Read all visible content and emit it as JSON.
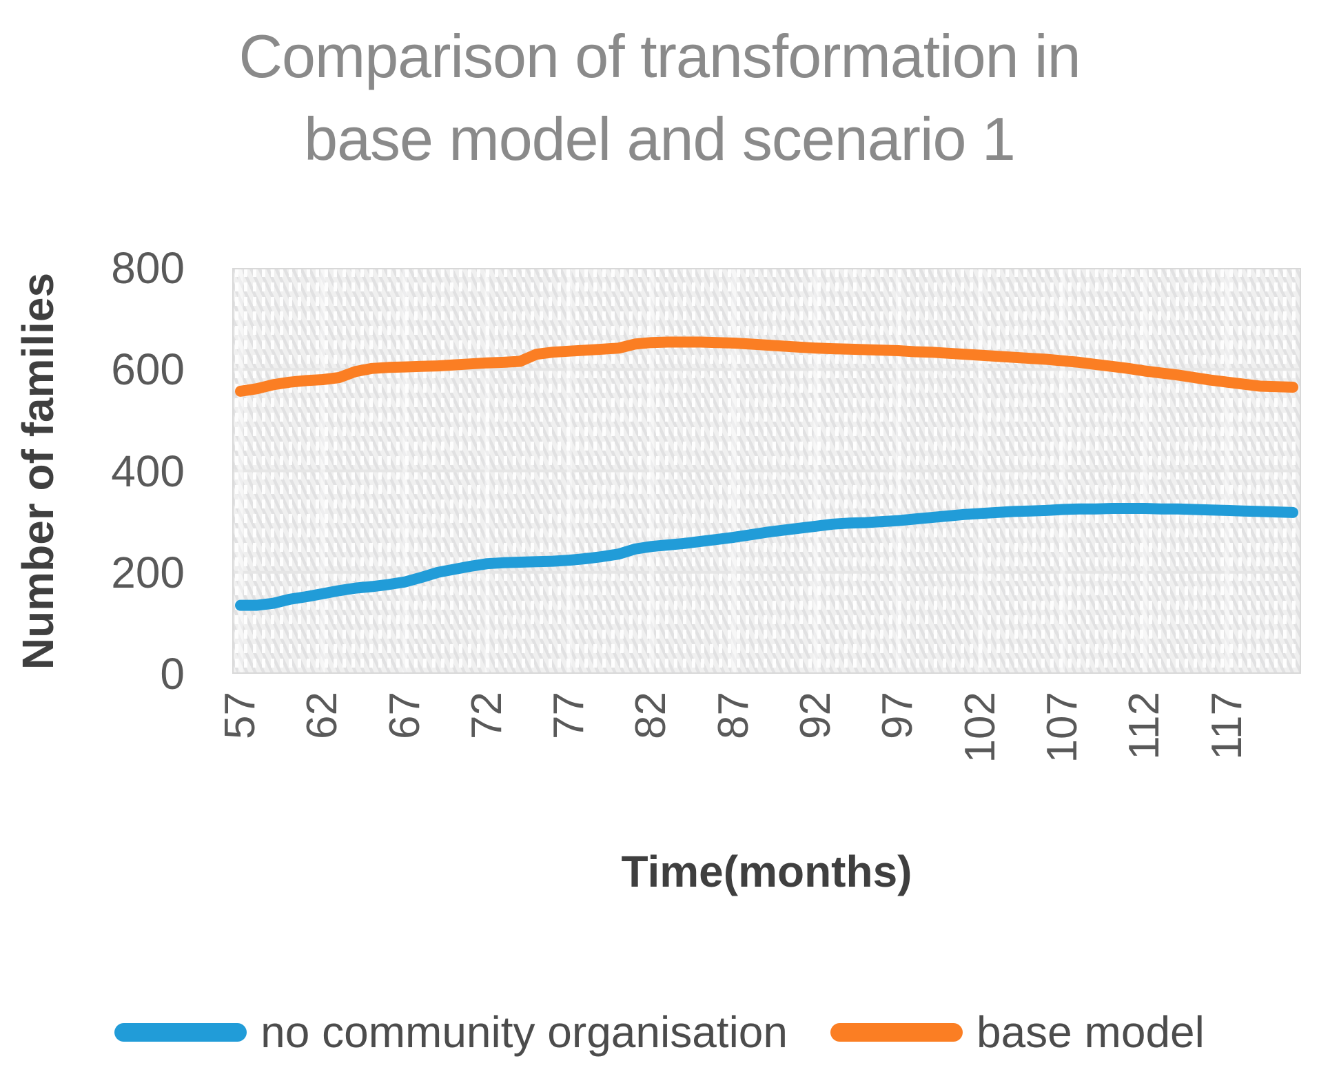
{
  "title": "Comparison of transformation in base model and scenario 1",
  "axes": {
    "y_label": "Number of families",
    "x_label": "Time(months)",
    "y_ticks": [
      800,
      600,
      400,
      200,
      0
    ],
    "x_ticks": [
      57,
      62,
      67,
      72,
      77,
      82,
      87,
      92,
      97,
      102,
      107,
      112,
      117
    ]
  },
  "legend": [
    {
      "label": "no community organisation",
      "color": "#219CD8"
    },
    {
      "label": "base model",
      "color": "#FB7E23"
    }
  ],
  "colors": {
    "title_text": "#8a8a8a",
    "axis_text": "#595959",
    "axis_title_text": "#3f3f3f",
    "plot_fill": "#f0f0f0",
    "plot_hatch": "#e1e1e2",
    "gridline": "#e6e6e6",
    "plot_border": "#d8d8d8"
  },
  "chart_data": {
    "type": "line",
    "title": "Comparison of transformation in base model and scenario 1",
    "xlabel": "Time(months)",
    "ylabel": "Number of families",
    "ylim": [
      0,
      800
    ],
    "grid_y_values": [
      200,
      400,
      600
    ],
    "legend_position": "bottom",
    "x": [
      57,
      58,
      59,
      60,
      61,
      62,
      63,
      64,
      65,
      66,
      67,
      68,
      69,
      70,
      71,
      72,
      73,
      74,
      75,
      76,
      77,
      78,
      79,
      80,
      81,
      82,
      83,
      84,
      85,
      86,
      87,
      88,
      89,
      90,
      91,
      92,
      93,
      94,
      95,
      96,
      97,
      98,
      99,
      100,
      101,
      102,
      103,
      104,
      105,
      106,
      107,
      108,
      109,
      110,
      111,
      112,
      113,
      114,
      115,
      116,
      117,
      118,
      119,
      120,
      121
    ],
    "series": [
      {
        "name": "no community organisation",
        "color": "#219CD8",
        "values": [
          135,
          135,
          139,
          147,
          152,
          158,
          164,
          169,
          172,
          176,
          181,
          190,
          200,
          206,
          212,
          217,
          219,
          220,
          221,
          222,
          224,
          227,
          231,
          236,
          246,
          251,
          254,
          257,
          261,
          265,
          269,
          274,
          279,
          283,
          287,
          291,
          295,
          297,
          298,
          300,
          302,
          305,
          308,
          311,
          314,
          316,
          318,
          320,
          321,
          322,
          324,
          325,
          325,
          326,
          326,
          326,
          325,
          325,
          324,
          323,
          322,
          321,
          320,
          319,
          318
        ]
      },
      {
        "name": "base model",
        "color": "#FB7E23",
        "values": [
          557,
          562,
          570,
          575,
          578,
          580,
          584,
          596,
          602,
          604,
          605,
          606,
          607,
          609,
          611,
          613,
          614,
          616,
          630,
          634,
          636,
          638,
          640,
          642,
          650,
          653,
          654,
          654,
          654,
          653,
          652,
          650,
          648,
          646,
          644,
          642,
          641,
          640,
          639,
          638,
          637,
          635,
          634,
          632,
          630,
          628,
          626,
          624,
          622,
          620,
          617,
          614,
          610,
          606,
          602,
          597,
          593,
          589,
          584,
          579,
          575,
          571,
          567,
          566,
          565
        ]
      }
    ]
  }
}
